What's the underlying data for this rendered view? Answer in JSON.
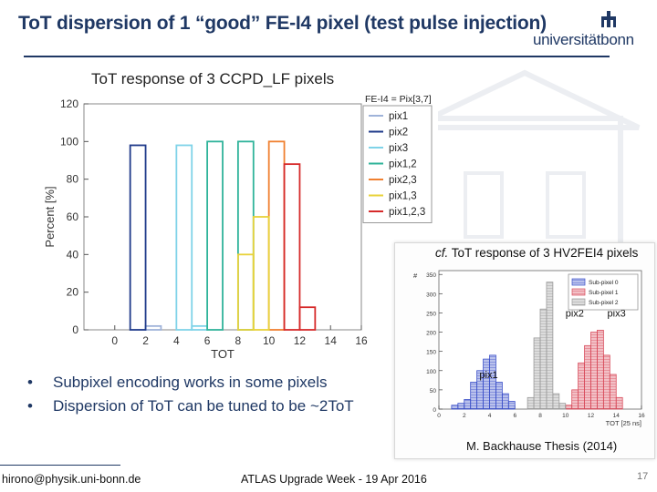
{
  "slide": {
    "title": "ToT dispersion of 1 “good” FE-I4 pixel (test pulse injection)",
    "logo_text": "universitätbonn",
    "bullets": [
      "Subpixel encoding works in some pixels",
      "Dispersion of ToT can be tuned to be ~2ToT"
    ],
    "footer_left": "hirono@physik.uni-bonn.de",
    "footer_center": "ATLAS Upgrade Week - 19 Apr 2016",
    "footer_right": "17"
  },
  "inset": {
    "title_prefix": "cf.",
    "title_rest": " ToT response of 3 HV2FEI4 pixels",
    "citation": "M. Backhause Thesis (2014)"
  },
  "chart_data": [
    {
      "type": "bar",
      "title": "ToT response of 3 CCPD_LF pixels",
      "xlabel": "TOT",
      "ylabel": "Percent [%]",
      "xlim": [
        -2,
        16
      ],
      "ylim": [
        0,
        120
      ],
      "xticks": [
        0,
        2,
        4,
        6,
        8,
        10,
        12,
        14,
        16
      ],
      "yticks": [
        0,
        20,
        40,
        60,
        80,
        100,
        120
      ],
      "legend_title": "FE-I4 = Pix[3,7]",
      "legend_position": "top-right",
      "series": [
        {
          "name": "pix1",
          "color": "#9fb3d9",
          "bars": [
            {
              "tot": 2,
              "value": 2
            }
          ]
        },
        {
          "name": "pix2",
          "color": "#1f3a8a",
          "bars": [
            {
              "tot": 1,
              "value": 98
            }
          ]
        },
        {
          "name": "pix3",
          "color": "#7fd3e8",
          "bars": [
            {
              "tot": 4,
              "value": 98
            },
            {
              "tot": 5,
              "value": 2
            }
          ]
        },
        {
          "name": "pix1,2",
          "color": "#2fb39a",
          "bars": [
            {
              "tot": 6,
              "value": 100
            },
            {
              "tot": 8,
              "value": 100
            }
          ]
        },
        {
          "name": "pix2,3",
          "color": "#f08030",
          "bars": [
            {
              "tot": 10,
              "value": 100
            }
          ]
        },
        {
          "name": "pix1,3",
          "color": "#e8d23a",
          "bars": [
            {
              "tot": 8,
              "value": 40
            },
            {
              "tot": 9,
              "value": 60
            }
          ]
        },
        {
          "name": "pix1,2,3",
          "color": "#d62a2a",
          "bars": [
            {
              "tot": 11,
              "value": 88
            },
            {
              "tot": 12,
              "value": 12
            }
          ]
        }
      ]
    },
    {
      "type": "bar",
      "title": "ToT response of 3 HV2FEI4 pixels",
      "xlabel": "TOT [25 ns]",
      "ylabel": "#",
      "xlim": [
        0,
        16
      ],
      "ylim": [
        0,
        360
      ],
      "xticks": [
        0,
        2,
        4,
        6,
        8,
        10,
        12,
        14,
        16
      ],
      "yticks": [
        0,
        50,
        100,
        150,
        200,
        250,
        300,
        350
      ],
      "legend_position": "top-right",
      "annotations": [
        "pix1",
        "pix2",
        "pix3"
      ],
      "series": [
        {
          "name": "Sub-pixel 0",
          "color": "#3a4fc8",
          "bins": [
            [
              1,
              10
            ],
            [
              1.5,
              15
            ],
            [
              2,
              25
            ],
            [
              2.5,
              70
            ],
            [
              3,
              100
            ],
            [
              3.5,
              130
            ],
            [
              4,
              140
            ],
            [
              4.5,
              70
            ],
            [
              5,
              40
            ],
            [
              5.5,
              20
            ]
          ]
        },
        {
          "name": "Sub-pixel 1",
          "color": "#d84a5a",
          "bins": [
            [
              10,
              10
            ],
            [
              10.5,
              50
            ],
            [
              11,
              120
            ],
            [
              11.5,
              165
            ],
            [
              12,
              200
            ],
            [
              12.5,
              205
            ],
            [
              13,
              140
            ],
            [
              13.5,
              90
            ],
            [
              14,
              30
            ]
          ]
        },
        {
          "name": "Sub-pixel 2",
          "color": "#9a9a9a",
          "bins": [
            [
              7,
              30
            ],
            [
              7.5,
              185
            ],
            [
              8,
              260
            ],
            [
              8.5,
              330
            ],
            [
              9,
              40
            ],
            [
              9.5,
              15
            ]
          ]
        }
      ]
    }
  ]
}
